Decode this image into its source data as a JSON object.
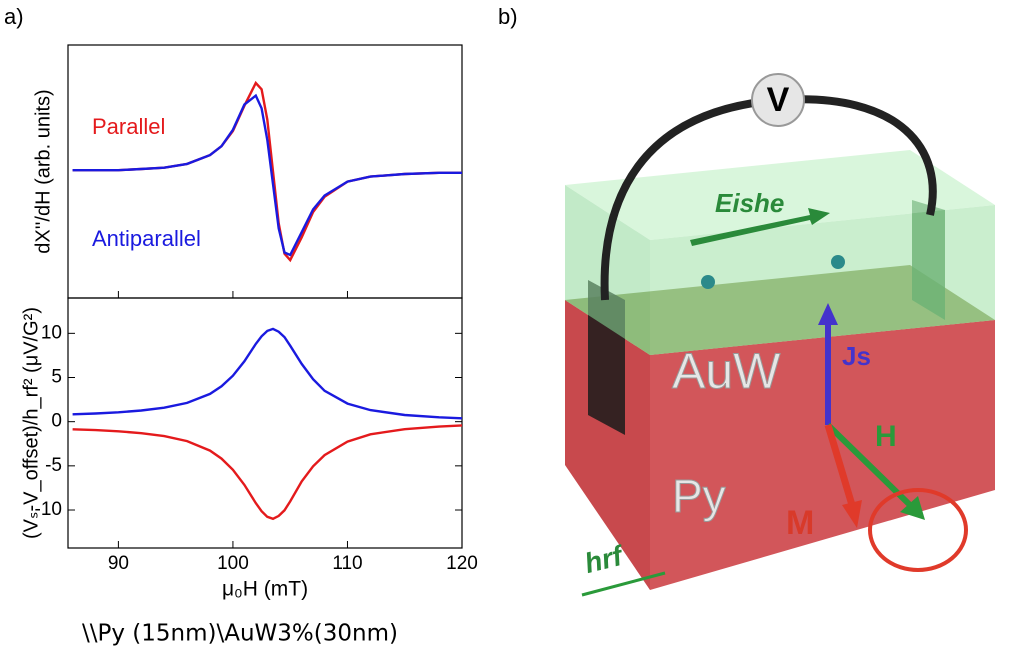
{
  "panel_labels": [
    "a)",
    "b)"
  ],
  "chart_data": [
    {
      "type": "line",
      "ylabel": "dX''/dH (arb. units)",
      "x": [
        86,
        88,
        90,
        92,
        94,
        96,
        98,
        99,
        100,
        101,
        102,
        102.5,
        103,
        103.5,
        104,
        104.5,
        105,
        106,
        107,
        108,
        110,
        112,
        115,
        118,
        120
      ],
      "series": [
        {
          "name": "Parallel",
          "color": "#e41a1c",
          "values": [
            0.01,
            0.01,
            0.01,
            0.02,
            0.03,
            0.06,
            0.13,
            0.2,
            0.32,
            0.52,
            0.7,
            0.65,
            0.41,
            0,
            -0.41,
            -0.65,
            -0.7,
            -0.52,
            -0.32,
            -0.2,
            -0.08,
            -0.04,
            -0.02,
            -0.01,
            -0.01
          ]
        },
        {
          "name": "Antiparallel",
          "color": "#1a1adf",
          "values": [
            0.01,
            0.01,
            0.01,
            0.02,
            0.03,
            0.06,
            0.13,
            0.2,
            0.33,
            0.53,
            0.6,
            0.5,
            0.25,
            -0.1,
            -0.45,
            -0.64,
            -0.66,
            -0.48,
            -0.3,
            -0.19,
            -0.08,
            -0.04,
            -0.02,
            -0.01,
            -0.01
          ]
        }
      ],
      "xlim": [
        85.6,
        120
      ],
      "ylim": [
        -1.0,
        1.0
      ]
    },
    {
      "type": "line",
      "xlabel": "μ₀H (mT)",
      "ylabel": "(Vₛ-V_offset)/h_rf² (μV/G²)",
      "x": [
        86,
        88,
        90,
        92,
        94,
        96,
        98,
        99,
        100,
        101,
        102,
        102.5,
        103,
        103.5,
        104,
        104.5,
        105,
        106,
        107,
        108,
        110,
        112,
        115,
        118,
        120
      ],
      "series": [
        {
          "color": "#1a1adf",
          "values": [
            0.84,
            0.93,
            1.06,
            1.26,
            1.58,
            2.12,
            3.14,
            4.0,
            5.21,
            6.84,
            8.8,
            9.67,
            10.28,
            10.5,
            10.18,
            9.57,
            8.6,
            6.54,
            4.81,
            3.5,
            2.05,
            1.31,
            0.76,
            0.49,
            0.38
          ]
        },
        {
          "color": "#e41a1c",
          "values": [
            -0.86,
            -0.95,
            -1.09,
            -1.3,
            -1.63,
            -2.2,
            -3.27,
            -4.18,
            -5.45,
            -7.16,
            -9.22,
            -10.13,
            -10.77,
            -11.0,
            -10.67,
            -10.03,
            -9.02,
            -6.76,
            -5.05,
            -3.78,
            -2.25,
            -1.43,
            -0.85,
            -0.56,
            -0.42
          ]
        }
      ],
      "xlim": [
        85.6,
        120
      ],
      "ylim": [
        -14.3,
        14.0
      ],
      "xticks": [
        90,
        100,
        110,
        120
      ],
      "yticks": [
        -10,
        -5,
        0,
        5,
        10
      ]
    }
  ],
  "caption": "\\\\Py (15nm)\\AuW3%(30nm)",
  "diagram": {
    "voltmeter": "V",
    "eishe": "Eishe",
    "auw": "AuW",
    "js": "Js",
    "h": "H",
    "py": "Py",
    "m": "M",
    "hrf": "hrf"
  }
}
